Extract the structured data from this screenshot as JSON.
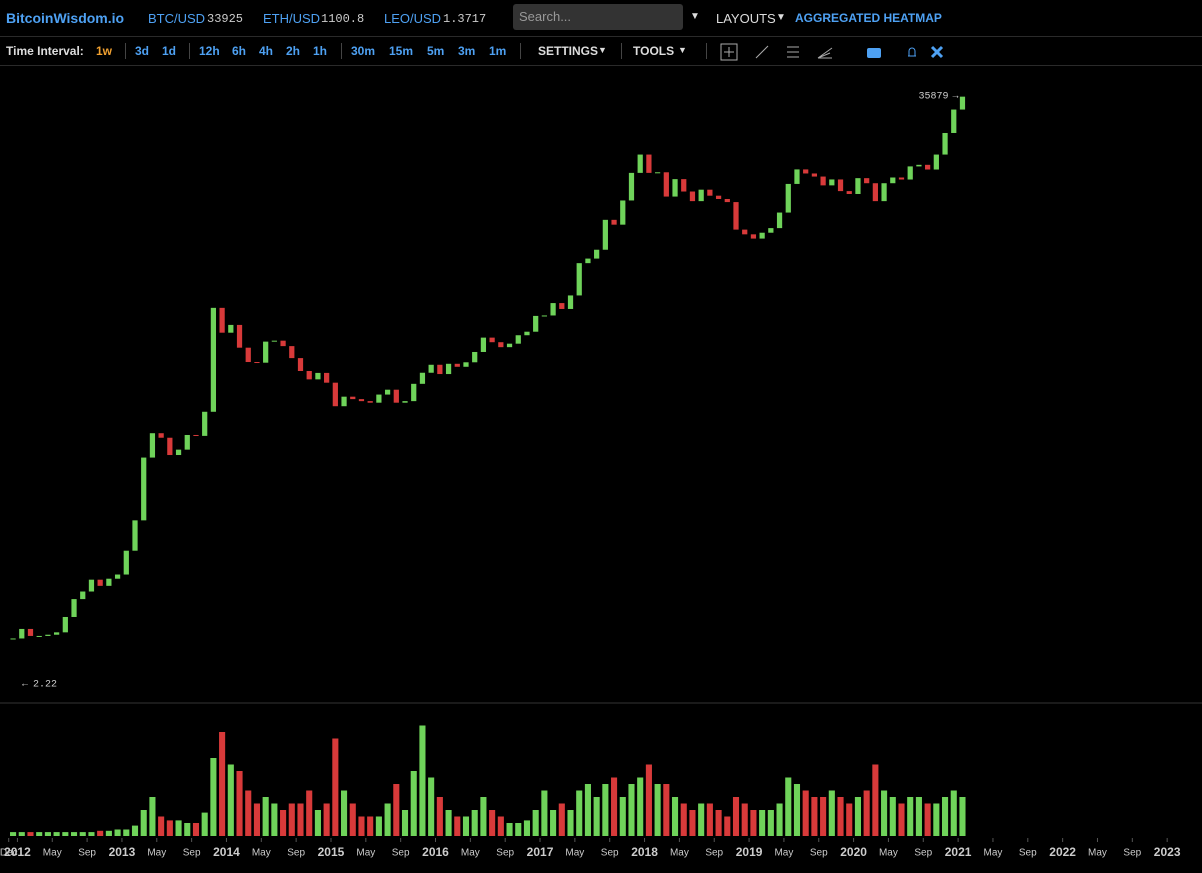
{
  "header": {
    "logo": "BitcoinWisdom.io",
    "tickers": [
      {
        "symbol": "BTC/USD",
        "price": 33925
      },
      {
        "symbol": "ETH/USD",
        "price": 1100.8
      },
      {
        "symbol": "LEO/USD",
        "price": 1.3717
      }
    ],
    "search_placeholder": "Search...",
    "layouts": "LAYOUTS",
    "heatmap": "AGGREGATED HEATMAP"
  },
  "toolbar": {
    "label": "Time Interval:",
    "intervals": [
      "1w",
      "3d",
      "1d",
      "12h",
      "6h",
      "4h",
      "2h",
      "1h",
      "30m",
      "15m",
      "5m",
      "3m",
      "1m"
    ],
    "active": "1w",
    "settings": "SETTINGS",
    "tools": "TOOLS"
  },
  "chart_data": {
    "type": "candlestick",
    "log_scale": true,
    "ylim": [
      1.76,
      55700
    ],
    "up_color": "#6fd35a",
    "down_color": "#d83a3a",
    "x": [
      "2011-12",
      "2012-01",
      "2012-02",
      "2012-03",
      "2012-04",
      "2012-05",
      "2012-06",
      "2012-07",
      "2012-08",
      "2012-09",
      "2012-10",
      "2012-11",
      "2012-12",
      "2013-01",
      "2013-02",
      "2013-03",
      "2013-04",
      "2013-05",
      "2013-06",
      "2013-07",
      "2013-08",
      "2013-09",
      "2013-10",
      "2013-11",
      "2013-12",
      "2014-01",
      "2014-02",
      "2014-03",
      "2014-04",
      "2014-05",
      "2014-06",
      "2014-07",
      "2014-08",
      "2014-09",
      "2014-10",
      "2014-11",
      "2014-12",
      "2015-01",
      "2015-02",
      "2015-03",
      "2015-04",
      "2015-05",
      "2015-06",
      "2015-07",
      "2015-08",
      "2015-09",
      "2015-10",
      "2015-11",
      "2015-12",
      "2016-01",
      "2016-02",
      "2016-03",
      "2016-04",
      "2016-05",
      "2016-06",
      "2016-07",
      "2016-08",
      "2016-09",
      "2016-10",
      "2016-11",
      "2016-12",
      "2017-01",
      "2017-02",
      "2017-03",
      "2017-04",
      "2017-05",
      "2017-06",
      "2017-07",
      "2017-08",
      "2017-09",
      "2017-10",
      "2017-11",
      "2017-12",
      "2018-01",
      "2018-02",
      "2018-03",
      "2018-04",
      "2018-05",
      "2018-06",
      "2018-07",
      "2018-08",
      "2018-09",
      "2018-10",
      "2018-11",
      "2018-12",
      "2019-01",
      "2019-02",
      "2019-03",
      "2019-04",
      "2019-05",
      "2019-06",
      "2019-07",
      "2019-08",
      "2019-09",
      "2019-10",
      "2019-11",
      "2019-12",
      "2020-01",
      "2020-02",
      "2020-03",
      "2020-04",
      "2020-05",
      "2020-06",
      "2020-07",
      "2020-08",
      "2020-09",
      "2020-10",
      "2020-11",
      "2020-12",
      "2021-01"
    ],
    "close": [
      4.7,
      5.5,
      4.9,
      4.9,
      5.0,
      5.2,
      6.7,
      9.0,
      10.2,
      12.4,
      11.2,
      12.6,
      13.5,
      20,
      33,
      93,
      139,
      129,
      97,
      106,
      135,
      133,
      198,
      1100,
      730,
      830,
      570,
      450,
      445,
      630,
      640,
      585,
      480,
      388,
      338,
      376,
      320,
      217,
      254,
      244,
      236,
      230,
      263,
      285,
      230,
      236,
      314,
      377,
      430,
      369,
      437,
      416,
      448,
      531,
      673,
      624,
      575,
      609,
      700,
      742,
      963,
      970,
      1190,
      1080,
      1350,
      2300,
      2480,
      2870,
      4700,
      4340,
      6470,
      10200,
      13800,
      10200,
      10300,
      6900,
      9200,
      7500,
      6400,
      7730,
      7000,
      6630,
      6300,
      4000,
      3700,
      3450,
      3800,
      4100,
      5300,
      8500,
      10800,
      10100,
      9600,
      8300,
      9150,
      7550,
      7200,
      9350,
      8600,
      6400,
      8600,
      9450,
      9140,
      11350,
      11650,
      10780,
      13800,
      19700,
      29000,
      35879
    ],
    "vlim": [
      0,
      100
    ],
    "volume": [
      3,
      3,
      3,
      3,
      3,
      3,
      3,
      3,
      3,
      3,
      4,
      4,
      5,
      5,
      8,
      20,
      30,
      15,
      12,
      12,
      10,
      10,
      18,
      60,
      80,
      55,
      50,
      35,
      25,
      30,
      25,
      20,
      25,
      25,
      35,
      20,
      25,
      75,
      35,
      25,
      15,
      15,
      15,
      25,
      40,
      20,
      50,
      85,
      45,
      30,
      20,
      15,
      15,
      20,
      30,
      20,
      15,
      10,
      10,
      12,
      20,
      35,
      20,
      25,
      20,
      35,
      40,
      30,
      40,
      45,
      30,
      40,
      45,
      55,
      40,
      40,
      30,
      25,
      20,
      25,
      25,
      20,
      15,
      30,
      25,
      20,
      20,
      20,
      25,
      45,
      40,
      35,
      30,
      30,
      35,
      30,
      25,
      30,
      35,
      55,
      35,
      30,
      25,
      30,
      30,
      25,
      25,
      30,
      35,
      30
    ],
    "annotations": {
      "high": 35879,
      "low": 2.22
    },
    "xlim": [
      "2011-11",
      "2023-05"
    ],
    "xticks": [
      {
        "value": "2011-12",
        "label": "Dec"
      },
      "2012",
      {
        "value": "2012-05",
        "label": "May"
      },
      {
        "value": "2012-09",
        "label": "Sep"
      },
      "2013",
      {
        "value": "2013-05",
        "label": "May"
      },
      {
        "value": "2013-09",
        "label": "Sep"
      },
      "2014",
      {
        "value": "2014-05",
        "label": "May"
      },
      {
        "value": "2014-09",
        "label": "Sep"
      },
      "2015",
      {
        "value": "2015-05",
        "label": "May"
      },
      {
        "value": "2015-09",
        "label": "Sep"
      },
      "2016",
      {
        "value": "2016-05",
        "label": "May"
      },
      {
        "value": "2016-09",
        "label": "Sep"
      },
      "2017",
      {
        "value": "2017-05",
        "label": "May"
      },
      {
        "value": "2017-09",
        "label": "Sep"
      },
      "2018",
      {
        "value": "2018-05",
        "label": "May"
      },
      {
        "value": "2018-09",
        "label": "Sep"
      },
      "2019",
      {
        "value": "2019-05",
        "label": "May"
      },
      {
        "value": "2019-09",
        "label": "Sep"
      },
      "2020",
      {
        "value": "2020-05",
        "label": "May"
      },
      {
        "value": "2020-09",
        "label": "Sep"
      },
      "2021",
      {
        "value": "2021-05",
        "label": "May"
      },
      {
        "value": "2021-09",
        "label": "Sep"
      },
      "2022",
      {
        "value": "2022-05",
        "label": "May"
      },
      {
        "value": "2022-09",
        "label": "Sep"
      },
      "2023"
    ]
  }
}
